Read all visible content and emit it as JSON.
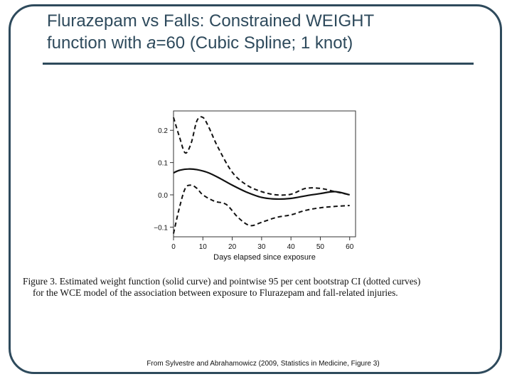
{
  "slide": {
    "title_line1": "Flurazepam vs Falls: Constrained WEIGHT",
    "title_line2_pre": "function with ",
    "title_line2_var": "a",
    "title_line2_post": "=60 (Cubic Spline; 1 knot)",
    "caption_label": "Figure 3.",
    "caption_line1": "Estimated weight function (solid curve) and pointwise 95 per cent bootstrap CI (dotted curves)",
    "caption_line2": "for the WCE model of the association between exposure to Flurazepam and fall-related injuries.",
    "source": "From Sylvestre and Abrahamowicz (2009, Statistics in Medicine, Figure 3)"
  },
  "chart_data": {
    "type": "line",
    "title": "",
    "xlabel": "Days elapsed since exposure",
    "ylabel": "",
    "xlim": [
      0,
      62
    ],
    "ylim": [
      -0.13,
      0.26
    ],
    "xticks": [
      0,
      10,
      20,
      30,
      40,
      50,
      60
    ],
    "yticks": [
      -0.1,
      0.0,
      0.1,
      0.2
    ],
    "ytick_labels": [
      "−0.1",
      "0.0",
      "0.1",
      "0.2"
    ],
    "grid": false,
    "legend": "none",
    "series": [
      {
        "style": "solid",
        "x": [
          0,
          2,
          5,
          8,
          12,
          16,
          20,
          25,
          30,
          35,
          40,
          45,
          50,
          55,
          60
        ],
        "y": [
          0.068,
          0.076,
          0.08,
          0.078,
          0.068,
          0.05,
          0.03,
          0.008,
          -0.008,
          -0.013,
          -0.011,
          -0.003,
          0.004,
          0.01,
          0.0
        ]
      },
      {
        "style": "dashed",
        "x": [
          0,
          2,
          4,
          6,
          8,
          10,
          12,
          15,
          20,
          25,
          30,
          35,
          40,
          45,
          50,
          55,
          60
        ],
        "y": [
          0.24,
          0.18,
          0.13,
          0.16,
          0.23,
          0.24,
          0.21,
          0.15,
          0.07,
          0.03,
          0.01,
          0.0,
          0.002,
          0.02,
          0.02,
          0.01,
          0.0
        ]
      },
      {
        "style": "dashed",
        "x": [
          0,
          2,
          4,
          6,
          8,
          10,
          14,
          18,
          22,
          26,
          30,
          35,
          40,
          45,
          50,
          55,
          60
        ],
        "y": [
          -0.12,
          -0.04,
          0.02,
          0.03,
          0.02,
          0.0,
          -0.02,
          -0.03,
          -0.07,
          -0.095,
          -0.085,
          -0.07,
          -0.062,
          -0.048,
          -0.04,
          -0.036,
          -0.033
        ]
      }
    ]
  }
}
